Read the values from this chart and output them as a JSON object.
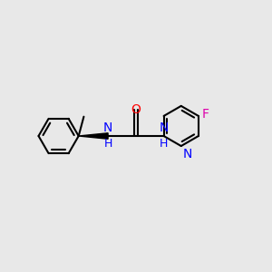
{
  "background_color": "#e8e8e8",
  "line_color": "#000000",
  "bond_width": 1.5,
  "N_color": "#0000ff",
  "O_color": "#ff0000",
  "F_color": "#dd00aa",
  "font_size": 10,
  "figsize": [
    3.0,
    3.0
  ],
  "dpi": 100,
  "xlim": [
    -0.5,
    9.5
  ],
  "ylim": [
    1.5,
    8.5
  ]
}
